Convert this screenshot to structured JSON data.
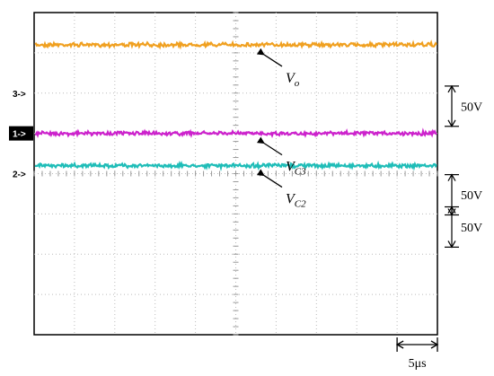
{
  "chart_data": {
    "type": "line",
    "title": "",
    "xlabel": "",
    "ylabel": "",
    "time_scale": "5μs",
    "x_divisions": 10,
    "y_divisions": 8,
    "grid": true,
    "series": [
      {
        "name": "Vo",
        "label_main": "V",
        "label_sub": "o",
        "channel": "1",
        "color": "#f0a020",
        "level_div": 3.2,
        "vdiv": "50V"
      },
      {
        "name": "VC2",
        "label_main": "V",
        "label_sub": "C2",
        "channel": "2",
        "color": "#1fbdb8",
        "level_div": 0.2,
        "vdiv": "50V"
      },
      {
        "name": "VC3",
        "label_main": "V",
        "label_sub": "C3",
        "channel": "3",
        "color": "#cc22cc",
        "level_div": 1.0,
        "vdiv": "50V"
      }
    ],
    "channel_markers": [
      {
        "label": "1->",
        "highlighted": true,
        "level_div": 1.0
      },
      {
        "label": "2->",
        "highlighted": false,
        "level_div": 0.0
      },
      {
        "label": "3->",
        "highlighted": false,
        "level_div": 2.0
      }
    ]
  }
}
